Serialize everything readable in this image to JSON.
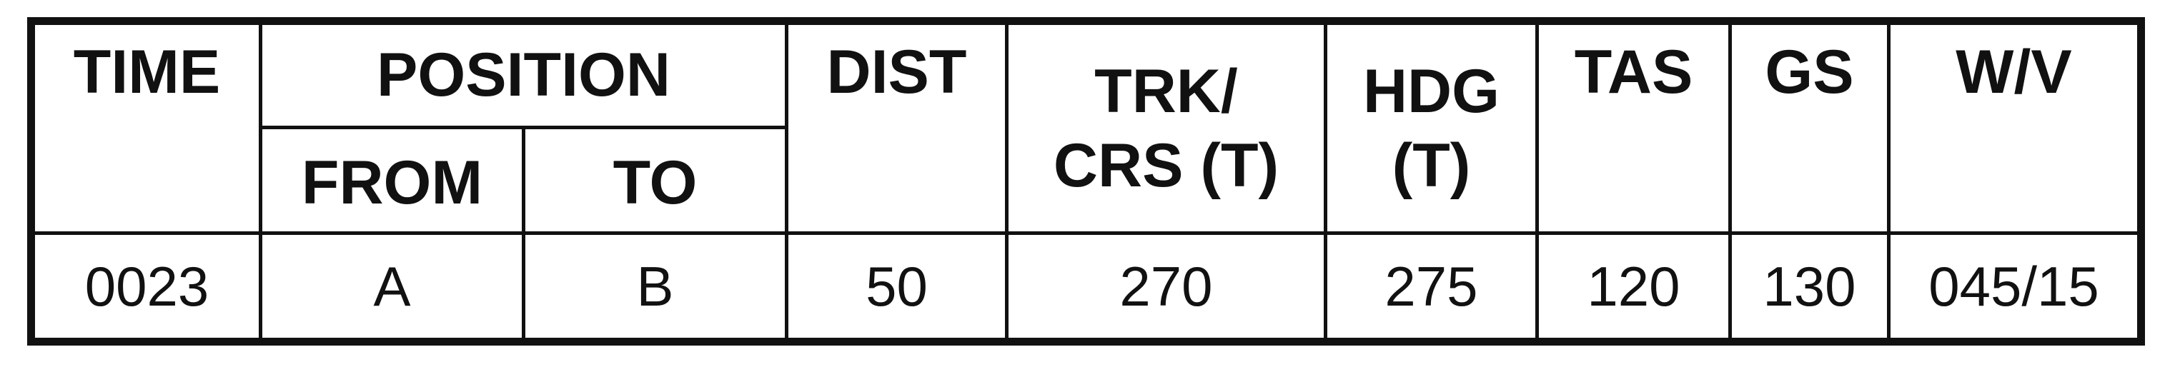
{
  "log_table": {
    "headers": {
      "time": "TIME",
      "position": "POSITION",
      "from": "FROM",
      "to": "TO",
      "dist": "DIST",
      "trk_line1": "TRK/",
      "trk_line2": "CRS (T)",
      "hdg_line1": "HDG",
      "hdg_line2": "(T)",
      "tas": "TAS",
      "gs": "GS",
      "wv": "W/V"
    },
    "row": {
      "time": "0023",
      "from": "A",
      "to": "B",
      "dist": "50",
      "trk": "270",
      "hdg": "275",
      "tas": "120",
      "gs": "130",
      "wv": "045/15"
    }
  }
}
